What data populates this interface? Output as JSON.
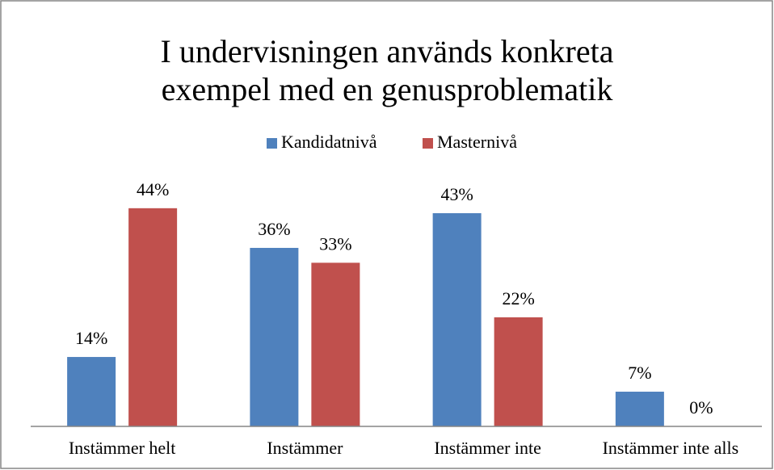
{
  "chart_data": {
    "type": "bar",
    "title": [
      "I undervisningen används konkreta",
      "exempel med en genusproblematik"
    ],
    "categories": [
      "Instämmer helt",
      "Instämmer",
      "Instämmer inte",
      "Instämmer inte alls"
    ],
    "series": [
      {
        "name": "Kandidatnivå",
        "color": "#4f81bd",
        "values": [
          14,
          36,
          43,
          7
        ],
        "value_labels": [
          "14%",
          "36%",
          "43%",
          "7%"
        ]
      },
      {
        "name": "Masternivå",
        "color": "#c0504d",
        "values": [
          44,
          33,
          22,
          0
        ],
        "value_labels": [
          "44%",
          "33%",
          "22%",
          "0%"
        ]
      }
    ],
    "legend": "top"
  }
}
